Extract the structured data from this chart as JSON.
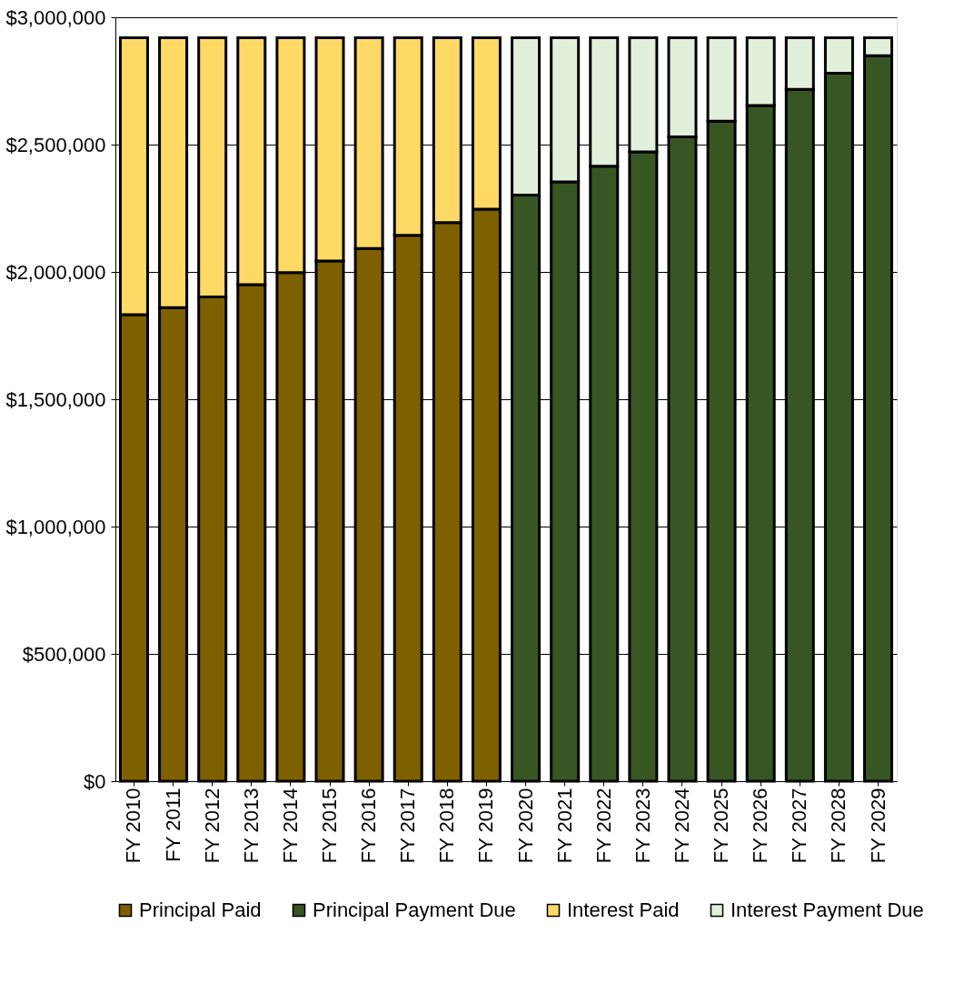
{
  "chart_data": {
    "type": "bar",
    "stacked": true,
    "categories": [
      "FY 2010",
      "FY 2011",
      "FY 2012",
      "FY 2013",
      "FY 2014",
      "FY 2015",
      "FY 2016",
      "FY 2017",
      "FY 2018",
      "FY 2019",
      "FY 2020",
      "FY 2021",
      "FY 2022",
      "FY 2023",
      "FY 2024",
      "FY 2025",
      "FY 2026",
      "FY 2027",
      "FY 2028",
      "FY 2029"
    ],
    "series": [
      {
        "name": "Principal Paid",
        "color": "#7f6000",
        "values": [
          1832000,
          1860000,
          1902000,
          1950000,
          1997000,
          2043000,
          2092000,
          2144000,
          2194000,
          2246000,
          null,
          null,
          null,
          null,
          null,
          null,
          null,
          null,
          null,
          null
        ]
      },
      {
        "name": "Principal Payment Due",
        "color": "#375623",
        "values": [
          null,
          null,
          null,
          null,
          null,
          null,
          null,
          null,
          null,
          null,
          2302000,
          2354000,
          2415000,
          2471000,
          2530000,
          2592000,
          2654000,
          2717000,
          2780000,
          2849000
        ]
      },
      {
        "name": "Interest Paid",
        "color": "#ffd966",
        "values": [
          1088000,
          1060000,
          1018000,
          970000,
          923000,
          877000,
          828000,
          776000,
          726000,
          674000,
          null,
          null,
          null,
          null,
          null,
          null,
          null,
          null,
          null,
          null
        ]
      },
      {
        "name": "Interest Payment Due",
        "color": "#e2efda",
        "values": [
          null,
          null,
          null,
          null,
          null,
          null,
          null,
          null,
          null,
          null,
          618000,
          566000,
          505000,
          449000,
          390000,
          328000,
          266000,
          203000,
          140000,
          71000
        ]
      }
    ],
    "ylim": [
      0,
      3000000
    ],
    "yticks": [
      {
        "value": 0,
        "label": "$0"
      },
      {
        "value": 500000,
        "label": "$500,000"
      },
      {
        "value": 1000000,
        "label": "$1,000,000"
      },
      {
        "value": 1500000,
        "label": "$1,500,000"
      },
      {
        "value": 2000000,
        "label": "$2,000,000"
      },
      {
        "value": 2500000,
        "label": "$2,500,000"
      },
      {
        "value": 3000000,
        "label": "$3,000,000"
      }
    ],
    "grid": "y",
    "legend": "bottom"
  }
}
